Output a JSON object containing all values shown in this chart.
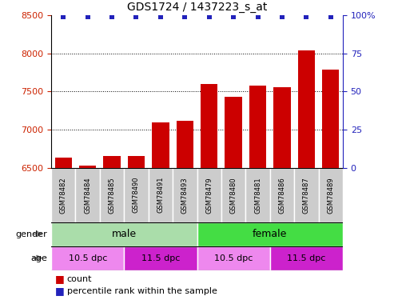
{
  "title": "GDS1724 / 1437223_s_at",
  "samples": [
    "GSM78482",
    "GSM78484",
    "GSM78485",
    "GSM78490",
    "GSM78491",
    "GSM78493",
    "GSM78479",
    "GSM78480",
    "GSM78481",
    "GSM78486",
    "GSM78487",
    "GSM78489"
  ],
  "counts": [
    6640,
    6530,
    6660,
    6660,
    7100,
    7120,
    7600,
    7430,
    7580,
    7560,
    8040,
    7790
  ],
  "percentile": [
    100,
    100,
    100,
    100,
    100,
    100,
    100,
    100,
    100,
    100,
    100,
    100
  ],
  "ylim_min": 6500,
  "ylim_max": 8500,
  "y_left_ticks": [
    6500,
    7000,
    7500,
    8000,
    8500
  ],
  "y_right_ticks": [
    0,
    25,
    50,
    75,
    100
  ],
  "bar_color": "#cc0000",
  "dot_color": "#2222bb",
  "bar_width": 0.7,
  "gender_labels": [
    {
      "label": "male",
      "start": 0,
      "end": 6,
      "color": "#aaddaa"
    },
    {
      "label": "female",
      "start": 6,
      "end": 12,
      "color": "#44dd44"
    }
  ],
  "age_labels": [
    {
      "label": "10.5 dpc",
      "start": 0,
      "end": 3,
      "color": "#ee88ee"
    },
    {
      "label": "11.5 dpc",
      "start": 3,
      "end": 6,
      "color": "#cc22cc"
    },
    {
      "label": "10.5 dpc",
      "start": 6,
      "end": 9,
      "color": "#ee88ee"
    },
    {
      "label": "11.5 dpc",
      "start": 9,
      "end": 12,
      "color": "#cc22cc"
    }
  ],
  "tick_label_color": "#cc2200",
  "right_axis_color": "#2222bb",
  "sample_bg_color": "#cccccc",
  "legend_count_color": "#cc0000",
  "legend_pct_color": "#2222bb"
}
